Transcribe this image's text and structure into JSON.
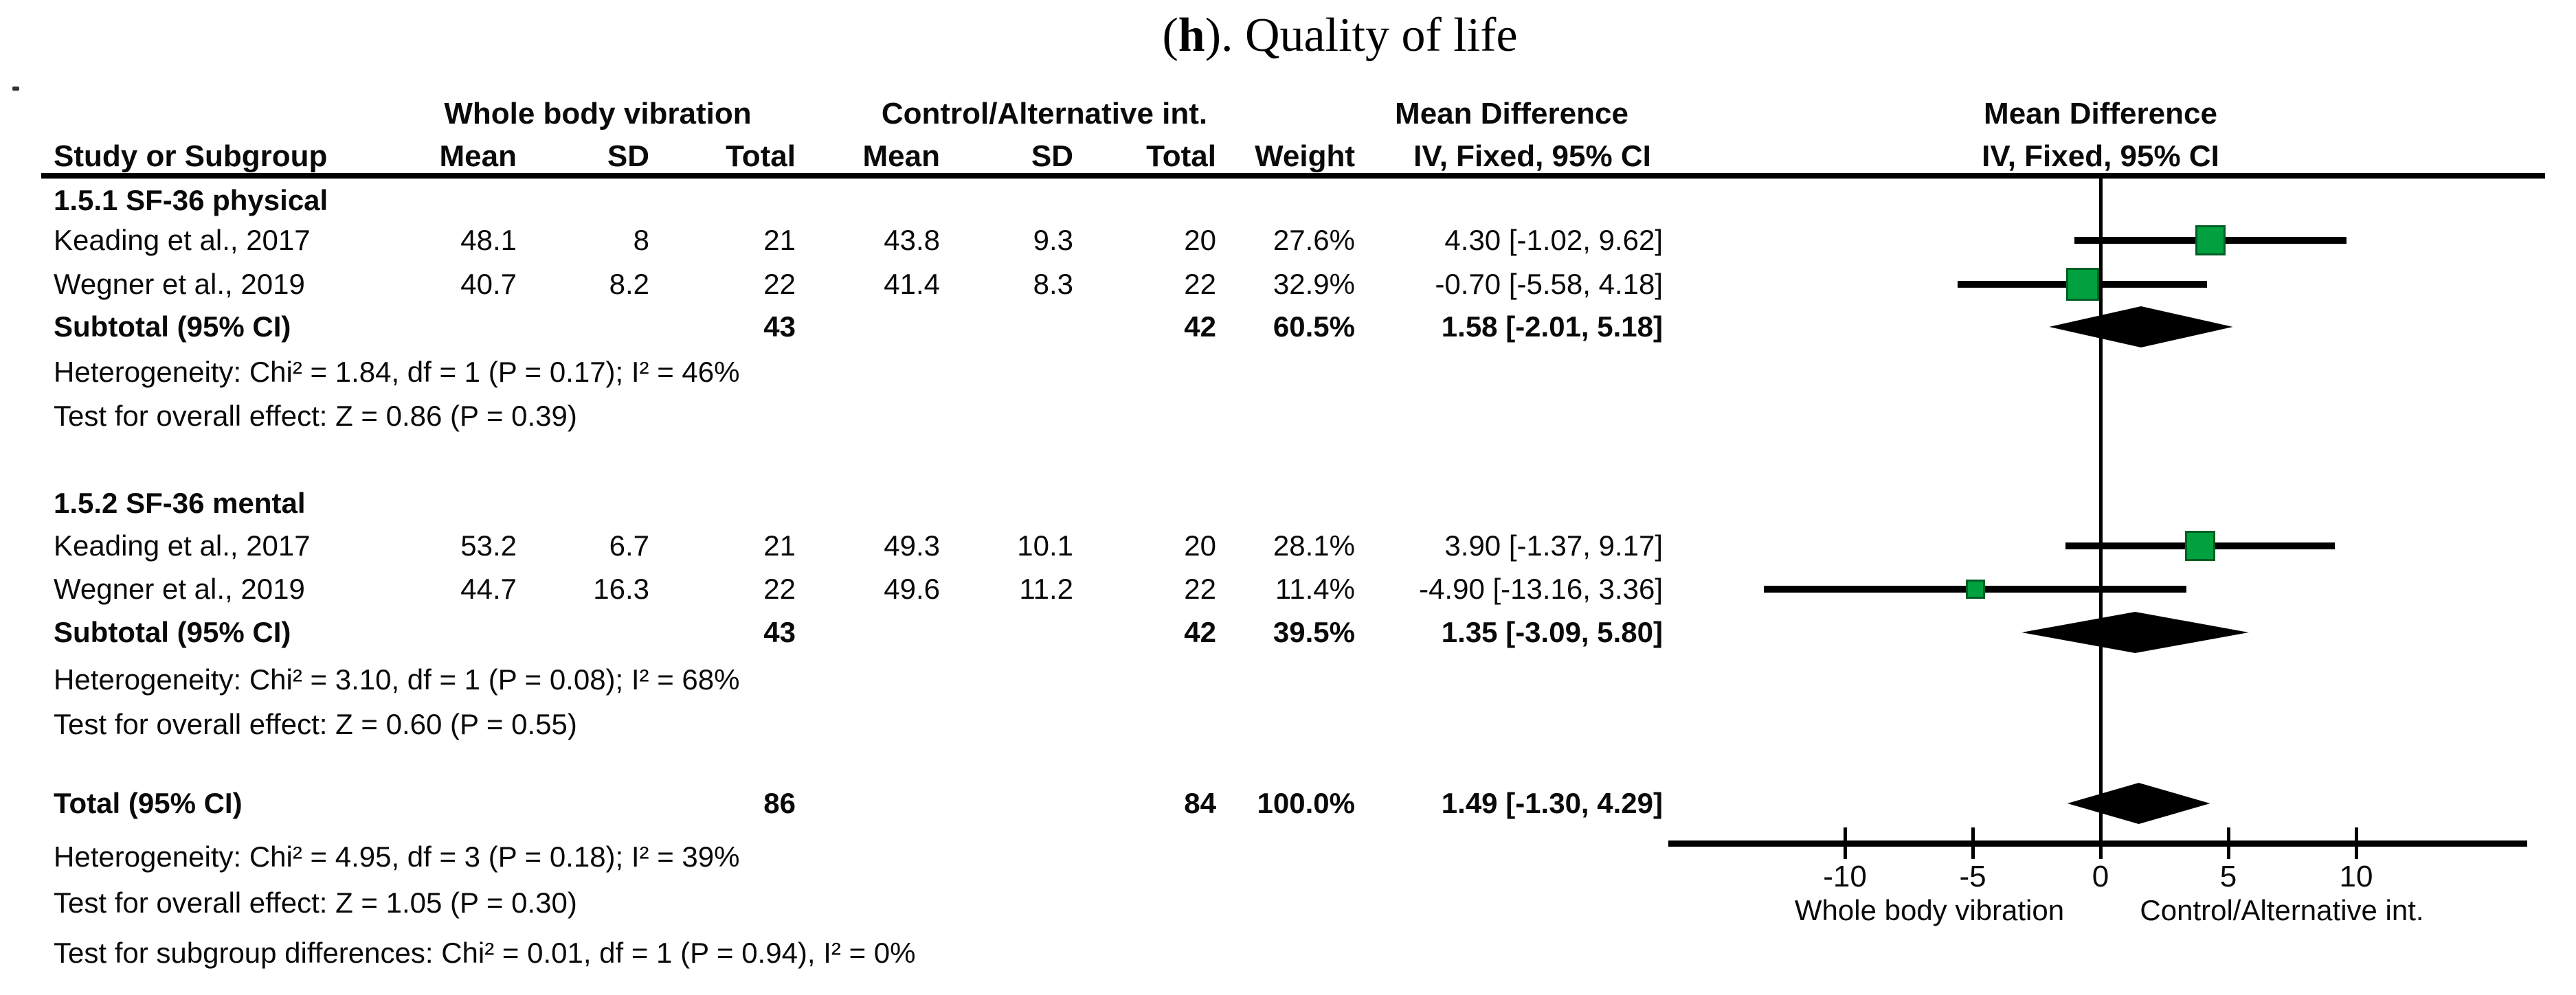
{
  "title": {
    "open": "(",
    "h": "h",
    "rest": "). Quality of life"
  },
  "table": {
    "group1_header": "Whole body vibration",
    "group2_header": "Control/Alternative int.",
    "md_header_left": "Mean Difference",
    "md_subheader_left": "IV, Fixed, 95% CI",
    "md_header_right": "Mean Difference",
    "md_subheader_right": "IV, Fixed, 95% CI",
    "col_study": "Study or Subgroup",
    "col_mean1": "Mean",
    "col_sd1": "SD",
    "col_total1": "Total",
    "col_mean2": "Mean",
    "col_sd2": "SD",
    "col_total2": "Total",
    "col_weight": "Weight"
  },
  "sections": [
    {
      "label": "1.5.1 SF-36 physical",
      "rows": [
        {
          "study": "Keading et al., 2017",
          "mean1": "48.1",
          "sd1": "8",
          "total1": "21",
          "mean2": "43.8",
          "sd2": "9.3",
          "total2": "20",
          "weight": "27.6%",
          "ci": "4.30 [-1.02, 9.62]"
        },
        {
          "study": "Wegner et al., 2019",
          "mean1": "40.7",
          "sd1": "8.2",
          "total1": "22",
          "mean2": "41.4",
          "sd2": "8.3",
          "total2": "22",
          "weight": "32.9%",
          "ci": "-0.70 [-5.58, 4.18]"
        }
      ],
      "subtotal": {
        "label": "Subtotal (95% CI)",
        "total1": "43",
        "total2": "42",
        "weight": "60.5%",
        "ci": "1.58 [-2.01, 5.18]"
      },
      "heterogeneity": "Heterogeneity: Chi² = 1.84, df = 1 (P = 0.17); I² = 46%",
      "overall_effect": "Test for overall effect: Z = 0.86 (P = 0.39)"
    },
    {
      "label": "1.5.2 SF-36 mental",
      "rows": [
        {
          "study": "Keading et al., 2017",
          "mean1": "53.2",
          "sd1": "6.7",
          "total1": "21",
          "mean2": "49.3",
          "sd2": "10.1",
          "total2": "20",
          "weight": "28.1%",
          "ci": "3.90 [-1.37, 9.17]"
        },
        {
          "study": "Wegner et al., 2019",
          "mean1": "44.7",
          "sd1": "16.3",
          "total1": "22",
          "mean2": "49.6",
          "sd2": "11.2",
          "total2": "22",
          "weight": "11.4%",
          "ci": "-4.90 [-13.16, 3.36]"
        }
      ],
      "subtotal": {
        "label": "Subtotal (95% CI)",
        "total1": "43",
        "total2": "42",
        "weight": "39.5%",
        "ci": "1.35 [-3.09, 5.80]"
      },
      "heterogeneity": "Heterogeneity: Chi² = 3.10, df = 1 (P = 0.08); I² = 68%",
      "overall_effect": "Test for overall effect: Z = 0.60 (P = 0.55)"
    }
  ],
  "total_row": {
    "label": "Total (95% CI)",
    "total1": "86",
    "total2": "84",
    "weight": "100.0%",
    "ci": "1.49 [-1.30, 4.29]"
  },
  "footer": {
    "heterogeneity": "Heterogeneity: Chi² = 4.95, df = 3 (P = 0.18); I² = 39%",
    "overall_effect": "Test for overall effect: Z = 1.05 (P = 0.30)",
    "subgroup_differences": "Test for subgroup differences: Chi² = 0.01, df = 1 (P = 0.94), I² = 0%"
  },
  "colors": {
    "square_fill": "#00A13E",
    "square_border": "#015E24",
    "ink": "#000000"
  },
  "chart_data": {
    "type": "forest",
    "title": "(h). Quality of life",
    "effect_label": "Mean Difference",
    "method": "IV, Fixed, 95% CI",
    "x_ticks": [
      -10,
      -5,
      0,
      5,
      10
    ],
    "xlim": [
      -16.9,
      16.7
    ],
    "zero_line": 0,
    "favours_left": "Whole body vibration",
    "favours_right": "Control/Alternative int.",
    "subgroups": [
      {
        "name": "1.5.1 SF-36 physical",
        "studies": [
          {
            "study": "Keading et al., 2017",
            "md": 4.3,
            "ci_low": -1.02,
            "ci_high": 9.62,
            "weight_pct": 27.6
          },
          {
            "study": "Wegner et al., 2019",
            "md": -0.7,
            "ci_low": -5.58,
            "ci_high": 4.18,
            "weight_pct": 32.9
          }
        ],
        "subtotal": {
          "md": 1.58,
          "ci_low": -2.01,
          "ci_high": 5.18,
          "weight_pct": 60.5,
          "chi2": 1.84,
          "df": 1,
          "p_het": 0.17,
          "i2_pct": 46,
          "z": 0.86,
          "p_overall": 0.39
        }
      },
      {
        "name": "1.5.2 SF-36 mental",
        "studies": [
          {
            "study": "Keading et al., 2017",
            "md": 3.9,
            "ci_low": -1.37,
            "ci_high": 9.17,
            "weight_pct": 28.1
          },
          {
            "study": "Wegner et al., 2019",
            "md": -4.9,
            "ci_low": -13.16,
            "ci_high": 3.36,
            "weight_pct": 11.4
          }
        ],
        "subtotal": {
          "md": 1.35,
          "ci_low": -3.09,
          "ci_high": 5.8,
          "weight_pct": 39.5,
          "chi2": 3.1,
          "df": 1,
          "p_het": 0.08,
          "i2_pct": 68,
          "z": 0.6,
          "p_overall": 0.55
        }
      }
    ],
    "total": {
      "md": 1.49,
      "ci_low": -1.3,
      "ci_high": 4.29,
      "weight_pct": 100.0,
      "chi2": 4.95,
      "df": 3,
      "p_het": 0.18,
      "i2_pct": 39,
      "z": 1.05,
      "p_overall": 0.3
    },
    "subgroup_difference": {
      "chi2": 0.01,
      "df": 1,
      "p": 0.94,
      "i2_pct": 0
    }
  }
}
